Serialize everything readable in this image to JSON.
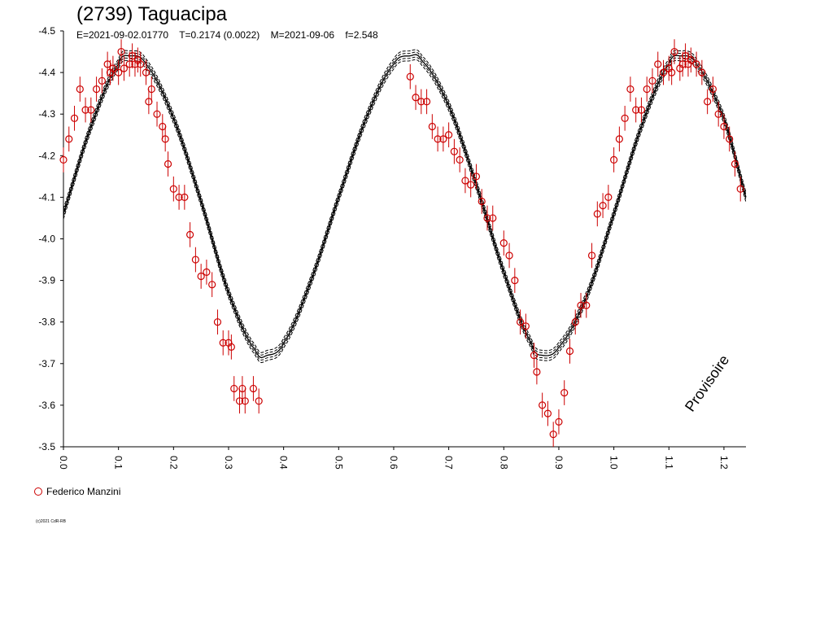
{
  "header": {
    "title": "(2739) Taguacipa",
    "subtitle": "E=2021-09-02.01770    T=0.2174 (0.0022)    M=2021-09-06    f=2.548"
  },
  "legend": {
    "label": "Federico Manzini",
    "color": "#cc0000"
  },
  "copyright": "(c)2021 CdR-RB",
  "watermark": "Provisoire",
  "chart_data": {
    "type": "scatter",
    "title": "(2739) Taguacipa",
    "subtitle": "E=2021-09-02.01770    T=0.2174 (0.0022)    M=2021-09-06    f=2.548",
    "xlim": [
      0.0,
      1.24
    ],
    "ylim": [
      -4.5,
      -3.5
    ],
    "y_inverted": true,
    "x_ticks": [
      "0.0",
      "0.1",
      "0.2",
      "0.3",
      "0.4",
      "0.5",
      "0.6",
      "0.7",
      "0.8",
      "0.9",
      "1.0",
      "1.1",
      "1.2"
    ],
    "y_ticks": [
      "-4.5",
      "-4.4",
      "-4.3",
      "-4.2",
      "-4.1",
      "-4.0",
      "-3.9",
      "-3.8",
      "-3.7",
      "-3.6",
      "-3.5"
    ],
    "series": [
      {
        "name": "Federico Manzini",
        "color": "#cc0000",
        "marker": "circle-with-errorbar",
        "error": 0.03,
        "x": [
          0.0,
          0.01,
          0.02,
          0.03,
          0.04,
          0.05,
          0.06,
          0.07,
          0.08,
          0.085,
          0.09,
          0.1,
          0.105,
          0.11,
          0.12,
          0.125,
          0.13,
          0.135,
          0.14,
          0.15,
          0.155,
          0.16,
          0.17,
          0.18,
          0.185,
          0.19,
          0.2,
          0.21,
          0.22,
          0.23,
          0.24,
          0.25,
          0.26,
          0.27,
          0.28,
          0.29,
          0.3,
          0.305,
          0.31,
          0.32,
          0.325,
          0.33,
          0.345,
          0.355,
          0.63,
          0.64,
          0.65,
          0.66,
          0.67,
          0.68,
          0.69,
          0.7,
          0.71,
          0.72,
          0.73,
          0.74,
          0.75,
          0.76,
          0.77,
          0.78,
          0.8,
          0.81,
          0.82,
          0.83,
          0.84,
          0.855,
          0.86,
          0.87,
          0.88,
          0.89,
          0.9,
          0.91,
          0.92,
          0.93,
          0.94,
          0.95,
          0.96,
          0.97,
          0.98,
          0.99,
          1.0,
          1.01,
          1.02,
          1.03,
          1.04,
          1.05,
          1.06,
          1.07,
          1.08,
          1.09,
          1.1,
          1.105,
          1.11,
          1.12,
          1.125,
          1.13,
          1.135,
          1.14,
          1.15,
          1.16,
          1.17,
          1.18,
          1.19,
          1.2,
          1.21,
          1.22,
          1.23
        ],
        "y": [
          -4.19,
          -4.24,
          -4.29,
          -4.36,
          -4.31,
          -4.31,
          -4.36,
          -4.38,
          -4.42,
          -4.4,
          -4.41,
          -4.4,
          -4.45,
          -4.41,
          -4.42,
          -4.44,
          -4.42,
          -4.43,
          -4.42,
          -4.4,
          -4.33,
          -4.36,
          -4.3,
          -4.27,
          -4.24,
          -4.18,
          -4.12,
          -4.1,
          -4.1,
          -4.01,
          -3.95,
          -3.91,
          -3.92,
          -3.89,
          -3.8,
          -3.75,
          -3.75,
          -3.74,
          -3.64,
          -3.61,
          -3.64,
          -3.61,
          -3.64,
          -3.61,
          -4.39,
          -4.34,
          -4.33,
          -4.33,
          -4.27,
          -4.24,
          -4.24,
          -4.25,
          -4.21,
          -4.19,
          -4.14,
          -4.13,
          -4.15,
          -4.09,
          -4.05,
          -4.05,
          -3.99,
          -3.96,
          -3.9,
          -3.8,
          -3.79,
          -3.72,
          -3.68,
          -3.6,
          -3.58,
          -3.53,
          -3.56,
          -3.63,
          -3.73,
          -3.8,
          -3.84,
          -3.84,
          -3.96,
          -4.06,
          -4.08,
          -4.1,
          -4.19,
          -4.24,
          -4.29,
          -4.36,
          -4.31,
          -4.31,
          -4.36,
          -4.38,
          -4.42,
          -4.4,
          -4.41,
          -4.4,
          -4.45,
          -4.41,
          -4.42,
          -4.44,
          -4.42,
          -4.43,
          -4.42,
          -4.4,
          -4.33,
          -4.36,
          -4.3,
          -4.27,
          -4.24,
          -4.18,
          -4.12
        ]
      }
    ],
    "fit": {
      "name": "fit",
      "color": "#000000",
      "x": [
        0.0,
        0.05,
        0.1,
        0.12,
        0.15,
        0.2,
        0.25,
        0.3,
        0.35,
        0.37,
        0.4,
        0.45,
        0.5,
        0.55,
        0.6,
        0.63,
        0.65,
        0.7,
        0.75,
        0.8,
        0.85,
        0.87,
        0.9,
        0.95,
        1.0,
        1.05,
        1.1,
        1.12,
        1.15,
        1.2,
        1.24
      ],
      "y": [
        -4.06,
        -4.27,
        -4.42,
        -4.44,
        -4.42,
        -4.29,
        -4.09,
        -3.87,
        -3.73,
        -3.72,
        -3.75,
        -3.9,
        -4.1,
        -4.29,
        -4.42,
        -4.44,
        -4.43,
        -4.32,
        -4.13,
        -3.92,
        -3.75,
        -3.72,
        -3.74,
        -3.86,
        -4.06,
        -4.27,
        -4.42,
        -4.44,
        -4.42,
        -4.29,
        -4.1
      ],
      "band": 0.012
    }
  }
}
